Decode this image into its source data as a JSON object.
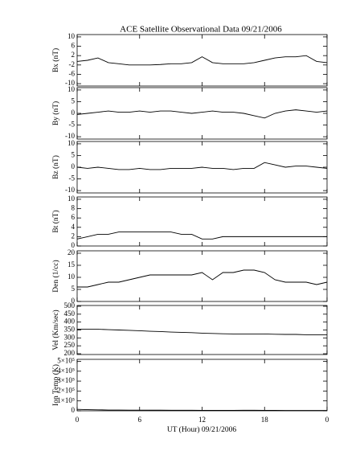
{
  "title": "ACE Satellite Observational Data   09/21/2006",
  "xlabel": "UT (Hour)  09/21/2006",
  "chart_data": [
    {
      "type": "line",
      "ylabel": "Bx (nT)",
      "color": "#000000",
      "x": [
        0,
        1,
        2,
        3,
        4,
        5,
        6,
        7,
        8,
        9,
        10,
        11,
        12,
        13,
        14,
        15,
        16,
        17,
        18,
        19,
        20,
        21,
        22,
        23,
        24
      ],
      "values": [
        -0.5,
        0,
        1,
        -1,
        -1.5,
        -2,
        -2,
        -2,
        -1.8,
        -1.5,
        -1.5,
        -1,
        1.5,
        -1,
        -1.5,
        -1.5,
        -1.5,
        -1,
        0,
        1,
        1.5,
        1.5,
        2,
        -0.5,
        -1
      ],
      "xlim": [
        0,
        24
      ],
      "xticks": [
        0,
        6,
        12,
        18,
        24
      ],
      "ylim": [
        -11,
        11
      ],
      "yticks": [
        -10,
        -6,
        -2,
        2,
        6,
        10
      ]
    },
    {
      "type": "line",
      "ylabel": "By (nT)",
      "color": "#000000",
      "x": [
        0,
        1,
        2,
        3,
        4,
        5,
        6,
        7,
        8,
        9,
        10,
        11,
        12,
        13,
        14,
        15,
        16,
        17,
        18,
        19,
        20,
        21,
        22,
        23,
        24
      ],
      "values": [
        -0.5,
        0,
        0.5,
        1,
        0.5,
        0.5,
        1,
        0.5,
        1,
        1,
        0.5,
        0,
        0.5,
        1,
        0.5,
        0.5,
        0,
        -1,
        -2,
        0,
        1,
        1.5,
        1,
        0.5,
        1
      ],
      "xlim": [
        0,
        24
      ],
      "xticks": [
        0,
        6,
        12,
        18,
        24
      ],
      "ylim": [
        -11,
        11
      ],
      "yticks": [
        -10,
        -5,
        0,
        5,
        10
      ]
    },
    {
      "type": "line",
      "ylabel": "Bz (nT)",
      "color": "#000000",
      "x": [
        0,
        1,
        2,
        3,
        4,
        5,
        6,
        7,
        8,
        9,
        10,
        11,
        12,
        13,
        14,
        15,
        16,
        17,
        18,
        19,
        20,
        21,
        22,
        23,
        24
      ],
      "values": [
        0,
        -0.5,
        0,
        -0.5,
        -1,
        -1,
        -0.5,
        -1,
        -1,
        -0.5,
        -0.5,
        -0.5,
        0,
        -0.5,
        -0.5,
        -1,
        -0.5,
        -0.5,
        2,
        1,
        0,
        0.5,
        0.5,
        0,
        -0.5
      ],
      "xlim": [
        0,
        24
      ],
      "xticks": [
        0,
        6,
        12,
        18,
        24
      ],
      "ylim": [
        -11,
        11
      ],
      "yticks": [
        -10,
        -5,
        0,
        5,
        10
      ]
    },
    {
      "type": "line",
      "ylabel": "Bt (nT)",
      "color": "#000000",
      "x": [
        0,
        1,
        2,
        3,
        4,
        5,
        6,
        7,
        8,
        9,
        10,
        11,
        12,
        13,
        14,
        15,
        16,
        17,
        18,
        19,
        20,
        21,
        22,
        23,
        24
      ],
      "values": [
        1.5,
        2,
        2.5,
        2.5,
        3,
        3,
        3,
        3,
        3,
        3,
        2.5,
        2.5,
        1.5,
        1.5,
        2,
        2,
        2,
        2,
        2,
        2,
        2,
        2,
        2,
        2,
        2
      ],
      "xlim": [
        0,
        24
      ],
      "xticks": [
        0,
        6,
        12,
        18,
        24
      ],
      "ylim": [
        0,
        10.5
      ],
      "yticks": [
        0,
        2,
        4,
        6,
        8,
        10
      ]
    },
    {
      "type": "line",
      "ylabel": "Den (1/cc)",
      "color": "#000000",
      "x": [
        0,
        1,
        2,
        3,
        4,
        5,
        6,
        7,
        8,
        9,
        10,
        11,
        12,
        13,
        14,
        15,
        16,
        17,
        18,
        19,
        20,
        21,
        22,
        23,
        24
      ],
      "values": [
        6,
        6,
        7,
        8,
        8,
        9,
        10,
        11,
        11,
        11,
        11,
        11,
        12,
        9,
        12,
        12,
        13,
        13,
        12,
        9,
        8,
        8,
        8,
        7,
        8
      ],
      "xlim": [
        0,
        24
      ],
      "xticks": [
        0,
        6,
        12,
        18,
        24
      ],
      "ylim": [
        0,
        21
      ],
      "yticks": [
        0,
        5,
        10,
        15,
        20
      ]
    },
    {
      "type": "line",
      "ylabel": "Vel (Km/sec)",
      "color": "#000000",
      "x": [
        0,
        1,
        2,
        3,
        4,
        5,
        6,
        7,
        8,
        9,
        10,
        11,
        12,
        13,
        14,
        15,
        16,
        17,
        18,
        19,
        20,
        21,
        22,
        23,
        24
      ],
      "values": [
        355,
        355,
        355,
        352,
        350,
        348,
        345,
        342,
        340,
        337,
        335,
        333,
        330,
        328,
        326,
        325,
        325,
        325,
        325,
        323,
        322,
        322,
        320,
        320,
        320
      ],
      "xlim": [
        0,
        24
      ],
      "xticks": [
        0,
        6,
        12,
        18,
        24
      ],
      "ylim": [
        195,
        505
      ],
      "yticks": [
        200,
        250,
        300,
        350,
        400,
        450,
        500
      ]
    },
    {
      "type": "line",
      "ylabel": "Ion Temp (K)",
      "color": "#000000",
      "x": [
        0,
        1,
        2,
        3,
        4,
        5,
        6,
        7,
        8,
        9,
        10,
        11,
        12,
        13,
        14,
        15,
        16,
        17,
        18,
        19,
        20,
        21,
        22,
        23,
        24
      ],
      "values": [
        15000,
        12000,
        10000,
        8000,
        8000,
        7000,
        7000,
        6000,
        6000,
        5000,
        5000,
        5000,
        4000,
        4000,
        4000,
        4000,
        5000,
        5000,
        4000,
        4000,
        3000,
        3000,
        3000,
        3000,
        3000
      ],
      "xlim": [
        0,
        24
      ],
      "xticks": [
        0,
        6,
        12,
        18,
        {
          "value": 24,
          "label": "0"
        }
      ],
      "ylim": [
        0,
        520000
      ],
      "yticks": [
        0,
        {
          "value": 100000,
          "label": "1×10⁵"
        },
        {
          "value": 200000,
          "label": "2×10⁵"
        },
        {
          "value": 300000,
          "label": "3×10⁵"
        },
        {
          "value": 400000,
          "label": "4×10⁵"
        },
        {
          "value": 500000,
          "label": "5×10⁵"
        }
      ]
    }
  ]
}
